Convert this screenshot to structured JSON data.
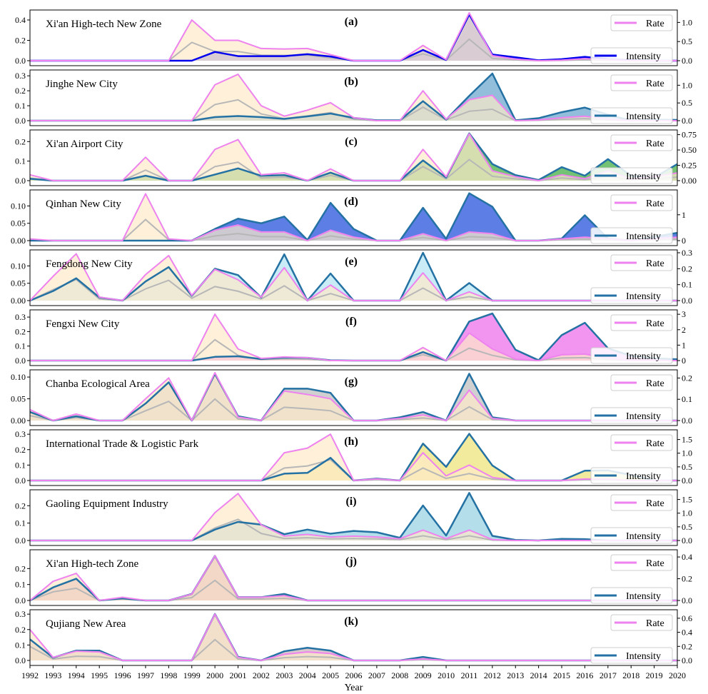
{
  "colors": {
    "rate_line": "#ee82ee",
    "rate_fill": "#fde9c9",
    "rate_outline_fill": "#b7b7b7"
  },
  "chart_data": {
    "type": "area",
    "xlabel": "Year",
    "years": [
      1992,
      1993,
      1994,
      1995,
      1996,
      1997,
      1998,
      1999,
      2000,
      2001,
      2002,
      2003,
      2004,
      2005,
      2006,
      2007,
      2008,
      2009,
      2010,
      2011,
      2012,
      2013,
      2014,
      2015,
      2016,
      2017,
      2018,
      2019,
      2020
    ],
    "legend": {
      "rate": "Rate",
      "intensity": "Intensity"
    },
    "panels": [
      {
        "letter": "(a)",
        "title": "Xi'an High-tech New Zone",
        "left_ylim": [
          0,
          0.47
        ],
        "left_ticks": [
          0.0,
          0.2,
          0.4
        ],
        "left_tick_labels": [
          "0.0",
          "0.2",
          "0.4"
        ],
        "right_ylim": [
          0,
          1.25
        ],
        "right_ticks": [
          0.0,
          0.5,
          1.0
        ],
        "right_tick_labels": [
          "0.0",
          "0.5",
          "1.0"
        ],
        "intensity_color": "#0000ee",
        "intensity_fill": "#6f74e6",
        "rate": [
          0,
          0,
          0,
          0,
          0,
          0,
          0,
          0.4,
          0.2,
          0.2,
          0.12,
          0.115,
          0.12,
          0.06,
          0,
          0,
          0,
          0.15,
          0.01,
          0.47,
          0.05,
          0.015,
          0,
          0.005,
          0.02,
          0.01,
          0,
          0,
          0
        ],
        "intensity": [
          0,
          0,
          0,
          0,
          0,
          0,
          0,
          0,
          0.23,
          0.12,
          0.12,
          0.12,
          0.17,
          0.11,
          0,
          0,
          0,
          0.28,
          0.02,
          1.21,
          0.16,
          0.09,
          0.01,
          0.04,
          0.1,
          0.04,
          0.01,
          0,
          0
        ]
      },
      {
        "letter": "(b)",
        "title": "Jinghe New City",
        "left_ylim": [
          0,
          0.32
        ],
        "left_ticks": [
          0.0,
          0.1,
          0.2,
          0.3
        ],
        "left_tick_labels": [
          "0.0",
          "0.1",
          "0.2",
          "0.3"
        ],
        "right_ylim": [
          0,
          1.35
        ],
        "right_ticks": [
          0.0,
          0.5,
          1.0
        ],
        "right_tick_labels": [
          "0.0",
          "0.5",
          "1.0"
        ],
        "intensity_color": "#2471a3",
        "intensity_fill": "#7fb3d5",
        "rate": [
          0,
          0,
          0,
          0,
          0,
          0,
          0,
          0,
          0.24,
          0.31,
          0.1,
          0.03,
          0.07,
          0.12,
          0.02,
          0,
          0,
          0.2,
          0.01,
          0.14,
          0.17,
          0,
          0.005,
          0.02,
          0.03,
          0.01,
          0,
          0,
          0
        ],
        "intensity": [
          0,
          0,
          0,
          0,
          0,
          0,
          0,
          0,
          0.1,
          0.13,
          0.1,
          0.05,
          0.12,
          0.2,
          0.08,
          0.01,
          0.01,
          0.55,
          0.03,
          0.7,
          1.33,
          0.01,
          0.07,
          0.24,
          0.37,
          0.17,
          0,
          0.03,
          0.02
        ]
      },
      {
        "letter": "(c)",
        "title": "Xi'an Airport City",
        "left_ylim": [
          0,
          0.245
        ],
        "left_ticks": [
          0.0,
          0.1,
          0.2
        ],
        "left_tick_labels": [
          "0.0",
          "0.1",
          "0.2"
        ],
        "right_ylim": [
          0,
          0.78
        ],
        "right_ticks": [
          0.0,
          0.25,
          0.5,
          0.75
        ],
        "right_tick_labels": [
          "0.00",
          "0.25",
          "0.50",
          "0.75"
        ],
        "intensity_color": "#2471a3",
        "intensity_fill": "#5cb85c",
        "rate": [
          0.03,
          0,
          0,
          0,
          0,
          0.12,
          0,
          0,
          0.16,
          0.21,
          0.03,
          0.04,
          0,
          0.06,
          0,
          0,
          0,
          0.16,
          0.02,
          0.24,
          0.05,
          0.02,
          0,
          0.03,
          0.01,
          0.05,
          0.01,
          0.02,
          0.04
        ],
        "intensity": [
          0.03,
          0,
          0,
          0,
          0,
          0.08,
          0,
          0,
          0.1,
          0.2,
          0.08,
          0.09,
          0,
          0.13,
          0,
          0,
          0,
          0.33,
          0.05,
          0.77,
          0.27,
          0.09,
          0.01,
          0.22,
          0.08,
          0.35,
          0.08,
          0.05,
          0.27
        ]
      },
      {
        "letter": "(d)",
        "title": "Qinhan New City",
        "left_ylim": [
          0,
          0.138
        ],
        "left_ticks": [
          0.0,
          0.05,
          0.1
        ],
        "left_tick_labels": [
          "0.00",
          "0.05",
          "0.10"
        ],
        "right_ylim": [
          0,
          1.85
        ],
        "right_ticks": [
          0,
          1
        ],
        "right_tick_labels": [
          "0",
          "1"
        ],
        "intensity_color": "#2471a3",
        "intensity_fill": "#4169e1",
        "rate": [
          0.005,
          0,
          0,
          0,
          0,
          0.135,
          0.005,
          0,
          0.03,
          0.045,
          0.025,
          0.025,
          0,
          0.03,
          0.01,
          0,
          0,
          0.02,
          0,
          0.025,
          0.02,
          0,
          0,
          0.005,
          0.01,
          0.005,
          0,
          0.005,
          0.01
        ],
        "intensity": [
          0,
          0,
          0,
          0,
          0,
          0,
          0,
          0,
          0.45,
          0.85,
          0.67,
          0.93,
          0.02,
          1.46,
          0.45,
          0,
          0,
          1.27,
          0.07,
          1.83,
          1.31,
          0,
          0,
          0.08,
          0.98,
          0.08,
          0,
          0.15,
          0.3
        ]
      },
      {
        "letter": "(e)",
        "title": "Fengdong New City",
        "left_ylim": [
          0,
          0.138
        ],
        "left_ticks": [
          0.0,
          0.05,
          0.1
        ],
        "left_tick_labels": [
          "0.00",
          "0.05",
          "0.10"
        ],
        "right_ylim": [
          0,
          0.3
        ],
        "right_ticks": [
          0.0,
          0.1,
          0.2,
          0.3
        ],
        "right_tick_labels": [
          "0.0",
          "0.1",
          "0.2",
          "0.3"
        ],
        "intensity_color": "#2471a3",
        "intensity_fill": "#bfe9f5",
        "rate": [
          0,
          0.07,
          0.135,
          0.01,
          0,
          0.075,
          0.13,
          0.015,
          0.09,
          0.06,
          0.01,
          0.095,
          0,
          0.045,
          0,
          0,
          0,
          0.08,
          0,
          0.025,
          0,
          0,
          0,
          0,
          0,
          0,
          0,
          0,
          0
        ],
        "intensity": [
          0,
          0.06,
          0.14,
          0.02,
          0,
          0.12,
          0.21,
          0.03,
          0.2,
          0.16,
          0.02,
          0.29,
          0,
          0.17,
          0,
          0,
          0,
          0.3,
          0,
          0.11,
          0,
          0,
          0,
          0,
          0,
          0,
          0,
          0,
          0
        ]
      },
      {
        "letter": "(f)",
        "title": "Fengxi New City",
        "left_ylim": [
          0,
          0.33
        ],
        "left_ticks": [
          0.0,
          0.1,
          0.2,
          0.3
        ],
        "left_tick_labels": [
          "0.0",
          "0.1",
          "0.2",
          "0.3"
        ],
        "right_ylim": [
          0,
          3.1
        ],
        "right_ticks": [
          0,
          1,
          2,
          3
        ],
        "right_tick_labels": [
          "0",
          "1",
          "2",
          "3"
        ],
        "intensity_color": "#2471a3",
        "intensity_fill": "#ee82ee",
        "rate": [
          0,
          0,
          0,
          0,
          0,
          0,
          0,
          0,
          0.32,
          0.08,
          0.015,
          0.025,
          0.02,
          0,
          0,
          0,
          0,
          0.09,
          0,
          0.19,
          0.08,
          0.01,
          0,
          0.04,
          0.045,
          0.015,
          0,
          0,
          0
        ],
        "intensity": [
          0,
          0,
          0,
          0,
          0,
          0,
          0,
          0,
          0.24,
          0.28,
          0.1,
          0.2,
          0.18,
          0.02,
          0,
          0,
          0,
          0.55,
          0,
          2.53,
          3.05,
          0.7,
          0.02,
          1.65,
          2.45,
          0.8,
          0.3,
          0.15,
          0.08
        ]
      },
      {
        "letter": "(g)",
        "title": "Chanba Ecological Area",
        "left_ylim": [
          0,
          0.11
        ],
        "left_ticks": [
          0.0,
          0.05,
          0.1
        ],
        "left_tick_labels": [
          "0.00",
          "0.05",
          "0.10"
        ],
        "right_ylim": [
          0,
          0.225
        ],
        "right_ticks": [
          0.0,
          0.1,
          0.2
        ],
        "right_tick_labels": [
          "0.0",
          "0.1",
          "0.2"
        ],
        "intensity_color": "#2471a3",
        "intensity_fill": "#c8c8c8",
        "rate": [
          0.025,
          0,
          0.015,
          0,
          0,
          0.05,
          0.098,
          0,
          0.11,
          0.008,
          0,
          0.068,
          0.06,
          0.05,
          0,
          0,
          0.005,
          0.013,
          0,
          0.07,
          0.005,
          0,
          0,
          0,
          0,
          0,
          0,
          0,
          0
        ],
        "intensity": [
          0.04,
          0,
          0.02,
          0,
          0,
          0.08,
          0.18,
          0,
          0.22,
          0.02,
          0,
          0.15,
          0.15,
          0.13,
          0,
          0,
          0.015,
          0.04,
          0,
          0.22,
          0.015,
          0,
          0,
          0,
          0,
          0,
          0,
          0,
          0
        ]
      },
      {
        "letter": "(h)",
        "title": "International Trade & Logistic Park",
        "left_ylim": [
          0,
          0.31
        ],
        "left_ticks": [
          0.0,
          0.1,
          0.2,
          0.3
        ],
        "left_tick_labels": [
          "0.0",
          "0.1",
          "0.2",
          "0.3"
        ],
        "right_ylim": [
          0,
          1.75
        ],
        "right_ticks": [
          0.0,
          0.5,
          1.0,
          1.5
        ],
        "right_tick_labels": [
          "0.0",
          "0.5",
          "1.0",
          "1.5"
        ],
        "intensity_color": "#2471a3",
        "intensity_fill": "#f0e68c",
        "rate": [
          0,
          0,
          0,
          0,
          0,
          0,
          0,
          0,
          0,
          0,
          0,
          0.18,
          0.21,
          0.3,
          0,
          0.01,
          0,
          0.18,
          0.03,
          0.1,
          0.02,
          0,
          0,
          0,
          0.01,
          0.01,
          0,
          0,
          0
        ],
        "intensity": [
          0,
          0,
          0,
          0,
          0,
          0,
          0,
          0,
          0,
          0,
          0,
          0.25,
          0.28,
          0.83,
          0,
          0.07,
          0,
          1.35,
          0.5,
          1.71,
          0.55,
          0,
          0,
          0,
          0.36,
          0.37,
          0.2,
          0,
          0
        ]
      },
      {
        "letter": "(i)",
        "title": "Gaoling Equipment Industry",
        "left_ylim": [
          0,
          0.275
        ],
        "left_ticks": [
          0.0,
          0.1,
          0.2
        ],
        "left_tick_labels": [
          "0.0",
          "0.1",
          "0.2"
        ],
        "right_ylim": [
          0,
          1.75
        ],
        "right_ticks": [
          0.0,
          0.5,
          1.0,
          1.5
        ],
        "right_tick_labels": [
          "0.0",
          "0.5",
          "1.0",
          "1.5"
        ],
        "intensity_color": "#2471a3",
        "intensity_fill": "#a8d8e8",
        "rate": [
          0,
          0,
          0,
          0,
          0,
          0,
          0,
          0,
          0.16,
          0.27,
          0.09,
          0.025,
          0.035,
          0.02,
          0.025,
          0.02,
          0.01,
          0.06,
          0.01,
          0.06,
          0.005,
          0,
          0,
          0,
          0,
          0,
          0,
          0,
          0
        ],
        "intensity": [
          0,
          0,
          0,
          0,
          0,
          0,
          0,
          0,
          0.4,
          0.68,
          0.58,
          0.23,
          0.4,
          0.25,
          0.35,
          0.3,
          0.1,
          1.28,
          0.18,
          1.74,
          0.17,
          0.02,
          0,
          0.06,
          0.05,
          0,
          0,
          0,
          0
        ]
      },
      {
        "letter": "(j)",
        "title": "Xi'an High-tech Zone",
        "left_ylim": [
          0,
          0.3
        ],
        "left_ticks": [
          0.0,
          0.1,
          0.2
        ],
        "left_tick_labels": [
          "0.0",
          "0.1",
          "0.2"
        ],
        "right_ylim": [
          0,
          0.44
        ],
        "right_ticks": [
          0.0,
          0.2,
          0.4
        ],
        "right_tick_labels": [
          "0.0",
          "0.2",
          "0.4"
        ],
        "intensity_color": "#2471a3",
        "intensity_fill": "#d8a0b8",
        "rate": [
          0,
          0.12,
          0.17,
          0,
          0.02,
          0,
          0,
          0.04,
          0.28,
          0.02,
          0.02,
          0.03,
          0,
          0,
          0,
          0,
          0,
          0,
          0,
          0,
          0,
          0,
          0,
          0,
          0,
          0,
          0,
          0,
          0
        ],
        "intensity": [
          0,
          0.12,
          0.2,
          0,
          0.02,
          0,
          0,
          0.06,
          0.41,
          0.03,
          0.03,
          0.06,
          0,
          0,
          0,
          0,
          0,
          0,
          0,
          0,
          0,
          0,
          0,
          0,
          0,
          0,
          0,
          0,
          0
        ]
      },
      {
        "letter": "(k)",
        "title": "Qujiang New Area",
        "left_ylim": [
          0,
          0.31
        ],
        "left_ticks": [
          0.0,
          0.1,
          0.2,
          0.3
        ],
        "left_tick_labels": [
          "0.0",
          "0.1",
          "0.2",
          "0.3"
        ],
        "right_ylim": [
          0,
          0.68
        ],
        "right_ticks": [
          0.0,
          0.2,
          0.4,
          0.6
        ],
        "right_tick_labels": [
          "0.0",
          "0.2",
          "0.4",
          "0.6"
        ],
        "intensity_color": "#2471a3",
        "intensity_fill": "#d2c0c4",
        "rate": [
          0.2,
          0.02,
          0.06,
          0.055,
          0,
          0,
          0,
          0,
          0.3,
          0.02,
          0,
          0.04,
          0.055,
          0.045,
          0,
          0,
          0,
          0.01,
          0,
          0,
          0,
          0,
          0,
          0,
          0,
          0,
          0,
          0,
          0
        ],
        "intensity": [
          0.3,
          0.04,
          0.14,
          0.14,
          0,
          0,
          0,
          0,
          0.66,
          0.05,
          0,
          0.13,
          0.18,
          0.14,
          0,
          0,
          0,
          0.05,
          0,
          0,
          0,
          0,
          0,
          0,
          0,
          0,
          0,
          0,
          0
        ]
      }
    ]
  }
}
